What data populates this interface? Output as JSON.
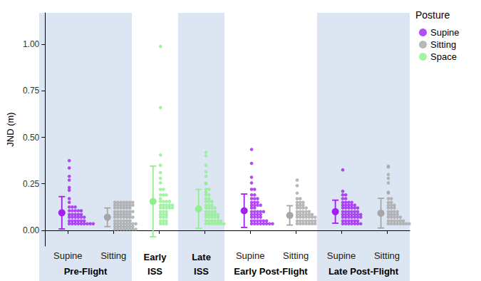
{
  "chart_data": {
    "type": "scatter",
    "y_label": "JND (m)",
    "legend": "right",
    "legend_title": "Posture",
    "grid": false,
    "marker": "circle",
    "categories": [
      "Supine",
      "Sitting",
      null,
      null,
      "Supine",
      "Sitting",
      "Supine",
      "Sitting"
    ],
    "category_groups": [
      "Pre-Flight",
      "Pre-Flight",
      "Early ISS",
      "Late ISS",
      "Early Post-Flight",
      "Early Post-Flight",
      "Late Post-Flight",
      "Late Post-Flight"
    ],
    "ylim": [
      -0.085,
      1.17
    ],
    "yticks": [
      {
        "value": 0,
        "label": "0.00"
      },
      {
        "value": 0.25,
        "label": "0.25"
      },
      {
        "value": 0.5,
        "label": "0.50"
      },
      {
        "value": 0.75,
        "label": "0.75"
      },
      {
        "value": 1,
        "label": "1.00"
      }
    ],
    "series": [
      {
        "name": "Supine",
        "color": "#a020f0",
        "values": [
          [
            0.375,
            0.335,
            0.29,
            0.27,
            0.23,
            0.215,
            0.17,
            0.15,
            0.125,
            0.125,
            0.125,
            0.105,
            0.105,
            0.105,
            0.105,
            0.105,
            0.085,
            0.085,
            0.085,
            0.085,
            0.085,
            0.07,
            0.07,
            0.07,
            0.07,
            0.07,
            0.07,
            0.05,
            0.05,
            0.05,
            0.05,
            0.05,
            0.05,
            0.035,
            0.035,
            0.035,
            0.035,
            0.035,
            0.035,
            0.035,
            0.035,
            0.035
          ],
          null,
          null,
          null,
          [
            0.435,
            0.36,
            0.285,
            0.255,
            0.22,
            0.22,
            0.19,
            0.19,
            0.17,
            0.17,
            0.17,
            0.15,
            0.15,
            0.15,
            0.135,
            0.135,
            0.135,
            0.135,
            0.12,
            0.12,
            0.1,
            0.1,
            0.1,
            0.1,
            0.1,
            0.085,
            0.085,
            0.085,
            0.085,
            0.07,
            0.07,
            0.07,
            0.07,
            0.05,
            0.05,
            0.05,
            0.05,
            0.05,
            0.05,
            0.035,
            0.035,
            0.035,
            0.035,
            0.035,
            0.035,
            0.035,
            0.035
          ],
          null,
          [
            0.325,
            0.21,
            0.19,
            0.19,
            0.17,
            0.17,
            0.15,
            0.15,
            0.15,
            0.15,
            0.135,
            0.135,
            0.135,
            0.135,
            0.135,
            0.12,
            0.12,
            0.12,
            0.12,
            0.12,
            0.12,
            0.1,
            0.1,
            0.1,
            0.1,
            0.1,
            0.1,
            0.085,
            0.085,
            0.085,
            0.085,
            0.085,
            0.085,
            0.085,
            0.07,
            0.07,
            0.07,
            0.07,
            0.07,
            0.07,
            0.07,
            0.05,
            0.05,
            0.05,
            0.05,
            0.05,
            0.05,
            0.035,
            0.035,
            0.035,
            0.035,
            0.035,
            0.035,
            0.035
          ],
          null
        ],
        "mean": [
          0.094,
          null,
          null,
          null,
          0.105,
          null,
          0.1,
          null
        ],
        "sd": [
          0.087,
          null,
          null,
          null,
          0.09,
          null,
          0.062,
          null
        ]
      },
      {
        "name": "Sitting",
        "color": "#a6a6a6",
        "values": [
          null,
          [
            0.15,
            0.15,
            0.15,
            0.15,
            0.15,
            0.15,
            0.15,
            0.135,
            0.135,
            0.135,
            0.135,
            0.135,
            0.135,
            0.135,
            0.12,
            0.12,
            0.12,
            0.12,
            0.12,
            0.12,
            0.1,
            0.1,
            0.1,
            0.1,
            0.1,
            0.1,
            0.1,
            0.085,
            0.085,
            0.085,
            0.085,
            0.085,
            0.085,
            0.07,
            0.07,
            0.07,
            0.07,
            0.07,
            0.07,
            0.07,
            0.05,
            0.05,
            0.05,
            0.05,
            0.05,
            0.05,
            0.035,
            0.035,
            0.035,
            0.035,
            0.035,
            0.035,
            0.035,
            0.035,
            0.02,
            0.02,
            0.02,
            0.02,
            0.02,
            0.02,
            0.02,
            0.005,
            0.005,
            0.005,
            0.005,
            0.005,
            0.005,
            0.005,
            0.005
          ],
          null,
          null,
          null,
          [
            0.27,
            0.24,
            0.2,
            0.17,
            0.17,
            0.15,
            0.15,
            0.15,
            0.135,
            0.135,
            0.135,
            0.12,
            0.12,
            0.12,
            0.12,
            0.1,
            0.1,
            0.1,
            0.1,
            0.1,
            0.085,
            0.085,
            0.085,
            0.085,
            0.085,
            0.085,
            0.07,
            0.07,
            0.07,
            0.07,
            0.07,
            0.07,
            0.07,
            0.05,
            0.05,
            0.05,
            0.05,
            0.05,
            0.05,
            0.05,
            0.035,
            0.035,
            0.035,
            0.035,
            0.035,
            0.035,
            0.035
          ],
          null,
          [
            0.345,
            0.34,
            0.3,
            0.28,
            0.255,
            0.205,
            0.2,
            0.17,
            0.17,
            0.15,
            0.15,
            0.135,
            0.135,
            0.135,
            0.12,
            0.12,
            0.12,
            0.1,
            0.1,
            0.1,
            0.1,
            0.085,
            0.085,
            0.085,
            0.085,
            0.07,
            0.07,
            0.07,
            0.07,
            0.07,
            0.05,
            0.05,
            0.05,
            0.05,
            0.05,
            0.05,
            0.035,
            0.035,
            0.035,
            0.035,
            0.035,
            0.035,
            0.035,
            0.035
          ]
        ],
        "mean": [
          null,
          0.07,
          null,
          null,
          null,
          0.08,
          null,
          0.092
        ],
        "sd": [
          null,
          0.05,
          null,
          null,
          null,
          0.052,
          null,
          0.08
        ]
      },
      {
        "name": "Space",
        "color": "#90ee90",
        "values": [
          null,
          null,
          [
            0.99,
            0.66,
            0.405,
            0.35,
            0.31,
            0.28,
            0.255,
            0.22,
            0.22,
            0.19,
            0.19,
            0.19,
            0.17,
            0.155,
            0.155,
            0.155,
            0.155,
            0.135,
            0.135,
            0.135,
            0.135,
            0.135,
            0.12,
            0.12,
            0.12,
            0.12,
            0.12,
            0.1,
            0.1,
            0.1,
            0.085,
            0.085,
            0.085,
            0.07,
            0.07,
            0.07,
            0.05,
            0.05,
            0.05,
            0.035,
            0.035,
            0.035
          ],
          [
            0.42,
            0.4,
            0.35,
            0.315,
            0.29,
            0.255,
            0.25,
            0.22,
            0.22,
            0.205,
            0.19,
            0.19,
            0.17,
            0.17,
            0.155,
            0.155,
            0.155,
            0.135,
            0.135,
            0.135,
            0.12,
            0.12,
            0.12,
            0.12,
            0.1,
            0.1,
            0.1,
            0.1,
            0.085,
            0.085,
            0.085,
            0.085,
            0.085,
            0.07,
            0.07,
            0.07,
            0.07,
            0.07,
            0.05,
            0.05,
            0.05,
            0.05,
            0.05,
            0.05,
            0.035,
            0.035,
            0.035,
            0.035,
            0.035,
            0.035,
            0.035
          ],
          null,
          null,
          null,
          null
        ],
        "mean": [
          null,
          null,
          0.155,
          0.115,
          null,
          null,
          null,
          null
        ],
        "sd": [
          null,
          null,
          0.19,
          0.105,
          null,
          null,
          null,
          null
        ]
      }
    ]
  }
}
